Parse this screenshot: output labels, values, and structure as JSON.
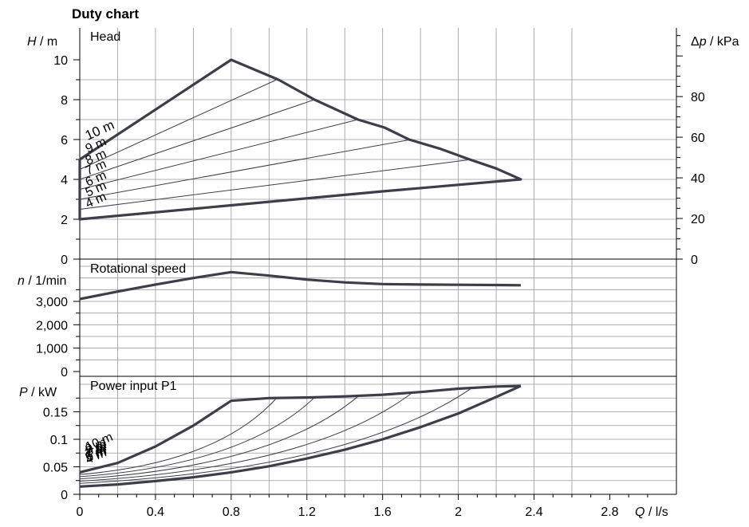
{
  "chart_data": [
    {
      "panel": "head",
      "type": "line",
      "title": "Duty chart",
      "panel_label": "Head",
      "ylabel_italic": "H",
      "ylabel_unit": " / m",
      "y2label_italic": "Δp",
      "y2label_unit": " / kPa",
      "xlim": [
        0,
        2.8
      ],
      "ylim": [
        0,
        10
      ],
      "y2lim": [
        0,
        98.1
      ],
      "yticks": [
        0,
        2,
        4,
        6,
        8,
        10
      ],
      "ytick_labels": [
        "0",
        "2",
        "4",
        "6",
        "8",
        "10"
      ],
      "y2ticks": [
        0,
        20,
        40,
        60,
        80
      ],
      "y2tick_labels": [
        "0",
        "20",
        "40",
        "60",
        "80"
      ],
      "envelope": [
        [
          0,
          5
        ],
        [
          0.8,
          10
        ],
        [
          1.05,
          9
        ],
        [
          1.24,
          8
        ],
        [
          1.47,
          7
        ],
        [
          1.61,
          6.6
        ],
        [
          1.74,
          6
        ],
        [
          1.9,
          5.55
        ],
        [
          2.06,
          5
        ],
        [
          2.2,
          4.55
        ],
        [
          2.33,
          4
        ],
        [
          1.6,
          3.4
        ],
        [
          0.8,
          2.7
        ],
        [
          0,
          2
        ],
        [
          0,
          5
        ]
      ],
      "iso_lines": [
        {
          "setpoint": "9 m",
          "x_end": 1.04,
          "y_end": 9,
          "y0": 4.5
        },
        {
          "setpoint": "8 m",
          "x_end": 1.24,
          "y_end": 8,
          "y0": 4.0
        },
        {
          "setpoint": "7 m",
          "x_end": 1.47,
          "y_end": 7,
          "y0": 3.5
        },
        {
          "setpoint": "6 m",
          "x_end": 1.75,
          "y_end": 6,
          "y0": 3.0
        },
        {
          "setpoint": "5 m",
          "x_end": 2.07,
          "y_end": 5,
          "y0": 2.5
        }
      ],
      "curve_labels": [
        "10 m",
        "9 m",
        "8 m",
        "7 m",
        "6 m",
        "5 m",
        "4 m"
      ]
    },
    {
      "panel": "speed",
      "type": "line",
      "panel_label": "Rotational speed",
      "ylabel_italic": "n",
      "ylabel_unit": " / 1/min",
      "ylim": [
        0,
        4700
      ],
      "yticks": [
        0,
        1000,
        2000,
        3000
      ],
      "ytick_labels": [
        "0",
        "1,000",
        "2,000",
        "3,000"
      ],
      "series": [
        {
          "x": [
            0,
            0.2,
            0.4,
            0.6,
            0.8,
            1.0,
            1.2,
            1.4,
            1.6,
            1.8,
            2.0,
            2.2,
            2.33
          ],
          "y": [
            3100,
            3420,
            3720,
            4000,
            4250,
            4100,
            3930,
            3810,
            3740,
            3720,
            3710,
            3700,
            3690
          ]
        }
      ]
    },
    {
      "panel": "power",
      "type": "line",
      "panel_label": "Power input P1",
      "ylabel_italic": "P",
      "ylabel_unit": "  / kW",
      "xlabel_italic": "Q",
      "xlabel_unit": " / l/s",
      "xlim": [
        0,
        2.8
      ],
      "ylim": [
        0,
        0.2
      ],
      "yticks": [
        0,
        0.05,
        0.1,
        0.15
      ],
      "ytick_labels": [
        "0",
        "0.05",
        "0.1",
        "0.15"
      ],
      "xticks": [
        0,
        0.4,
        0.8,
        1.2,
        1.6,
        2.0,
        2.4,
        2.8
      ],
      "xtick_labels": [
        "0",
        "0.4",
        "0.8",
        "1.2",
        "1.6",
        "2",
        "2.4",
        "2.8"
      ],
      "max_curve": {
        "x": [
          0,
          0.2,
          0.4,
          0.6,
          0.8,
          1.0,
          1.2,
          1.4,
          1.6,
          1.8,
          2.0,
          2.2,
          2.33
        ],
        "y": [
          0.04,
          0.057,
          0.087,
          0.125,
          0.17,
          0.175,
          0.176,
          0.178,
          0.181,
          0.186,
          0.192,
          0.196,
          0.197
        ]
      },
      "min_curve": {
        "x": [
          0,
          0.2,
          0.4,
          0.6,
          0.8,
          1.0,
          1.2,
          1.4,
          1.6,
          1.8,
          2.0,
          2.2,
          2.33
        ],
        "y": [
          0.014,
          0.018,
          0.024,
          0.031,
          0.04,
          0.051,
          0.065,
          0.081,
          0.1,
          0.122,
          0.147,
          0.177,
          0.197
        ]
      },
      "iso_lines": [
        {
          "x_end": 1.04,
          "y_end": 0.175,
          "y0": 0.036
        },
        {
          "x_end": 1.24,
          "y_end": 0.176,
          "y0": 0.032
        },
        {
          "x_end": 1.47,
          "y_end": 0.178,
          "y0": 0.028
        },
        {
          "x_end": 1.75,
          "y_end": 0.183,
          "y0": 0.024
        },
        {
          "x_end": 2.07,
          "y_end": 0.193,
          "y0": 0.02
        }
      ],
      "curve_labels": [
        "10 m",
        "9 m",
        "8 m",
        "7 m",
        "6 m",
        "5 m",
        "4 m"
      ]
    }
  ]
}
